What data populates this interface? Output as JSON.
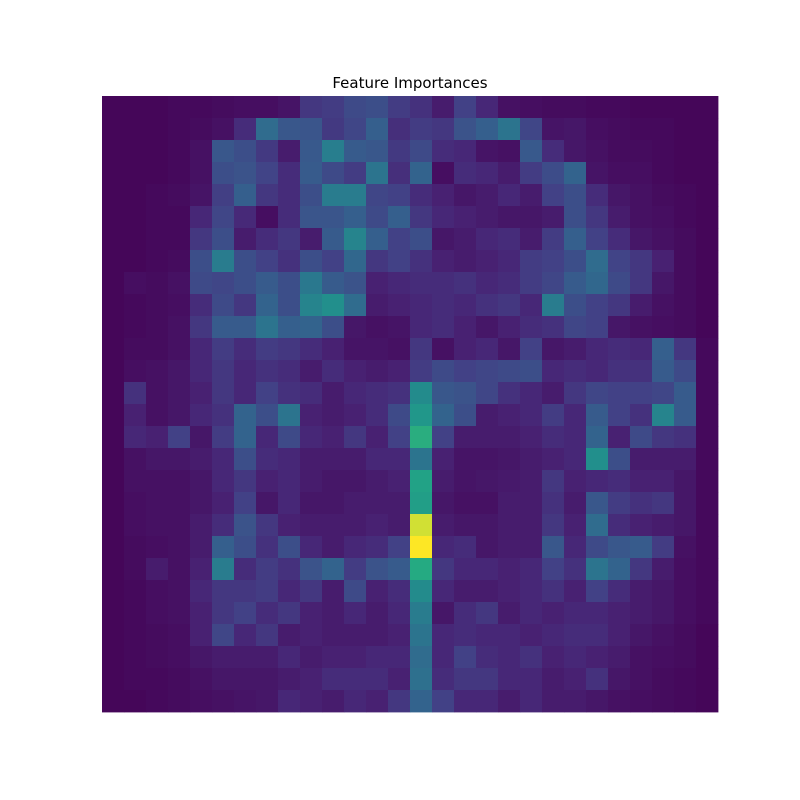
{
  "chart_data": {
    "type": "heatmap",
    "title": "Feature Importances",
    "xlabel": "",
    "ylabel": "",
    "axes_visible": false,
    "colormap": "viridis",
    "vmin": 0,
    "vmax": 1,
    "shape": [
      28,
      28
    ],
    "values": [
      [
        0.02,
        0.02,
        0.02,
        0.03,
        0.03,
        0.04,
        0.05,
        0.05,
        0.07,
        0.2,
        0.22,
        0.28,
        0.3,
        0.22,
        0.18,
        0.1,
        0.24,
        0.14,
        0.06,
        0.05,
        0.04,
        0.04,
        0.03,
        0.03,
        0.02,
        0.02,
        0.02,
        0.02
      ],
      [
        0.02,
        0.02,
        0.02,
        0.03,
        0.04,
        0.06,
        0.16,
        0.44,
        0.34,
        0.33,
        0.21,
        0.26,
        0.38,
        0.17,
        0.22,
        0.2,
        0.32,
        0.38,
        0.48,
        0.26,
        0.07,
        0.08,
        0.05,
        0.04,
        0.03,
        0.03,
        0.02,
        0.02
      ],
      [
        0.02,
        0.02,
        0.02,
        0.03,
        0.06,
        0.34,
        0.3,
        0.21,
        0.1,
        0.35,
        0.53,
        0.36,
        0.34,
        0.21,
        0.28,
        0.16,
        0.14,
        0.07,
        0.06,
        0.35,
        0.16,
        0.08,
        0.06,
        0.04,
        0.04,
        0.03,
        0.02,
        0.02
      ],
      [
        0.02,
        0.02,
        0.02,
        0.03,
        0.06,
        0.3,
        0.32,
        0.25,
        0.16,
        0.36,
        0.28,
        0.22,
        0.48,
        0.17,
        0.4,
        0.05,
        0.16,
        0.14,
        0.1,
        0.22,
        0.29,
        0.4,
        0.07,
        0.05,
        0.05,
        0.03,
        0.02,
        0.02
      ],
      [
        0.02,
        0.02,
        0.03,
        0.04,
        0.07,
        0.23,
        0.38,
        0.2,
        0.16,
        0.3,
        0.52,
        0.52,
        0.26,
        0.24,
        0.16,
        0.12,
        0.08,
        0.1,
        0.14,
        0.1,
        0.24,
        0.3,
        0.16,
        0.08,
        0.06,
        0.04,
        0.03,
        0.02
      ],
      [
        0.02,
        0.02,
        0.03,
        0.03,
        0.14,
        0.26,
        0.15,
        0.05,
        0.16,
        0.33,
        0.33,
        0.38,
        0.28,
        0.38,
        0.2,
        0.14,
        0.12,
        0.1,
        0.08,
        0.08,
        0.1,
        0.3,
        0.2,
        0.1,
        0.06,
        0.05,
        0.03,
        0.02
      ],
      [
        0.02,
        0.02,
        0.03,
        0.03,
        0.2,
        0.3,
        0.1,
        0.16,
        0.2,
        0.1,
        0.36,
        0.56,
        0.38,
        0.24,
        0.3,
        0.08,
        0.1,
        0.14,
        0.16,
        0.1,
        0.22,
        0.38,
        0.24,
        0.16,
        0.08,
        0.06,
        0.04,
        0.02
      ],
      [
        0.02,
        0.02,
        0.03,
        0.04,
        0.3,
        0.52,
        0.3,
        0.24,
        0.18,
        0.3,
        0.24,
        0.42,
        0.2,
        0.24,
        0.18,
        0.12,
        0.1,
        0.12,
        0.14,
        0.22,
        0.24,
        0.3,
        0.44,
        0.25,
        0.2,
        0.12,
        0.04,
        0.02
      ],
      [
        0.02,
        0.05,
        0.04,
        0.06,
        0.28,
        0.26,
        0.3,
        0.36,
        0.3,
        0.5,
        0.36,
        0.32,
        0.12,
        0.14,
        0.16,
        0.16,
        0.18,
        0.14,
        0.16,
        0.22,
        0.26,
        0.36,
        0.42,
        0.28,
        0.2,
        0.08,
        0.04,
        0.02
      ],
      [
        0.02,
        0.03,
        0.04,
        0.05,
        0.16,
        0.28,
        0.2,
        0.4,
        0.3,
        0.56,
        0.62,
        0.44,
        0.1,
        0.12,
        0.14,
        0.16,
        0.14,
        0.18,
        0.2,
        0.14,
        0.52,
        0.3,
        0.24,
        0.2,
        0.1,
        0.06,
        0.04,
        0.02
      ],
      [
        0.02,
        0.03,
        0.04,
        0.06,
        0.2,
        0.36,
        0.36,
        0.48,
        0.38,
        0.4,
        0.3,
        0.08,
        0.06,
        0.07,
        0.14,
        0.16,
        0.12,
        0.08,
        0.12,
        0.16,
        0.18,
        0.26,
        0.24,
        0.08,
        0.06,
        0.05,
        0.04,
        0.02
      ],
      [
        0.02,
        0.04,
        0.04,
        0.06,
        0.14,
        0.22,
        0.16,
        0.22,
        0.2,
        0.16,
        0.12,
        0.07,
        0.07,
        0.06,
        0.2,
        0.06,
        0.12,
        0.14,
        0.08,
        0.24,
        0.08,
        0.1,
        0.14,
        0.16,
        0.14,
        0.38,
        0.2,
        0.03
      ],
      [
        0.02,
        0.05,
        0.06,
        0.08,
        0.14,
        0.2,
        0.14,
        0.18,
        0.16,
        0.1,
        0.16,
        0.12,
        0.1,
        0.12,
        0.22,
        0.28,
        0.24,
        0.26,
        0.28,
        0.3,
        0.14,
        0.16,
        0.14,
        0.18,
        0.18,
        0.36,
        0.28,
        0.03
      ],
      [
        0.02,
        0.18,
        0.06,
        0.08,
        0.12,
        0.2,
        0.14,
        0.24,
        0.18,
        0.16,
        0.1,
        0.14,
        0.16,
        0.18,
        0.6,
        0.34,
        0.32,
        0.26,
        0.18,
        0.14,
        0.1,
        0.2,
        0.26,
        0.24,
        0.24,
        0.26,
        0.36,
        0.03
      ],
      [
        0.02,
        0.12,
        0.06,
        0.08,
        0.14,
        0.18,
        0.4,
        0.3,
        0.48,
        0.12,
        0.1,
        0.12,
        0.16,
        0.28,
        0.66,
        0.4,
        0.3,
        0.1,
        0.12,
        0.14,
        0.22,
        0.14,
        0.36,
        0.24,
        0.18,
        0.56,
        0.36,
        0.03
      ],
      [
        0.02,
        0.14,
        0.12,
        0.24,
        0.08,
        0.22,
        0.4,
        0.14,
        0.28,
        0.14,
        0.12,
        0.2,
        0.12,
        0.24,
        0.78,
        0.24,
        0.1,
        0.1,
        0.1,
        0.12,
        0.16,
        0.14,
        0.4,
        0.12,
        0.28,
        0.2,
        0.18,
        0.03
      ],
      [
        0.02,
        0.06,
        0.08,
        0.08,
        0.1,
        0.14,
        0.3,
        0.16,
        0.14,
        0.1,
        0.1,
        0.1,
        0.14,
        0.14,
        0.48,
        0.12,
        0.07,
        0.07,
        0.08,
        0.1,
        0.12,
        0.14,
        0.62,
        0.3,
        0.1,
        0.1,
        0.1,
        0.03
      ],
      [
        0.02,
        0.06,
        0.06,
        0.06,
        0.08,
        0.14,
        0.2,
        0.12,
        0.14,
        0.1,
        0.08,
        0.08,
        0.1,
        0.12,
        0.72,
        0.1,
        0.07,
        0.08,
        0.09,
        0.1,
        0.2,
        0.12,
        0.14,
        0.16,
        0.12,
        0.12,
        0.08,
        0.03
      ],
      [
        0.02,
        0.05,
        0.06,
        0.06,
        0.08,
        0.12,
        0.24,
        0.08,
        0.14,
        0.08,
        0.08,
        0.1,
        0.1,
        0.1,
        0.7,
        0.08,
        0.06,
        0.06,
        0.1,
        0.1,
        0.18,
        0.1,
        0.34,
        0.22,
        0.18,
        0.2,
        0.08,
        0.03
      ],
      [
        0.02,
        0.05,
        0.06,
        0.06,
        0.1,
        0.16,
        0.32,
        0.2,
        0.12,
        0.1,
        0.1,
        0.1,
        0.12,
        0.1,
        0.98,
        0.1,
        0.08,
        0.08,
        0.1,
        0.1,
        0.2,
        0.12,
        0.44,
        0.16,
        0.12,
        0.1,
        0.08,
        0.03
      ],
      [
        0.02,
        0.04,
        0.05,
        0.06,
        0.1,
        0.38,
        0.3,
        0.18,
        0.3,
        0.14,
        0.1,
        0.14,
        0.16,
        0.24,
        1.0,
        0.14,
        0.16,
        0.08,
        0.1,
        0.1,
        0.34,
        0.14,
        0.28,
        0.34,
        0.36,
        0.22,
        0.06,
        0.03
      ],
      [
        0.02,
        0.04,
        0.1,
        0.06,
        0.12,
        0.52,
        0.16,
        0.22,
        0.18,
        0.32,
        0.4,
        0.22,
        0.32,
        0.36,
        0.76,
        0.2,
        0.14,
        0.14,
        0.12,
        0.14,
        0.24,
        0.18,
        0.48,
        0.4,
        0.2,
        0.1,
        0.05,
        0.03
      ],
      [
        0.02,
        0.03,
        0.05,
        0.06,
        0.14,
        0.2,
        0.2,
        0.22,
        0.14,
        0.2,
        0.1,
        0.28,
        0.12,
        0.16,
        0.6,
        0.14,
        0.1,
        0.1,
        0.12,
        0.14,
        0.18,
        0.12,
        0.24,
        0.16,
        0.1,
        0.08,
        0.05,
        0.03
      ],
      [
        0.02,
        0.03,
        0.05,
        0.06,
        0.12,
        0.2,
        0.24,
        0.16,
        0.2,
        0.12,
        0.1,
        0.14,
        0.1,
        0.14,
        0.52,
        0.08,
        0.16,
        0.2,
        0.1,
        0.14,
        0.12,
        0.14,
        0.14,
        0.12,
        0.1,
        0.08,
        0.05,
        0.03
      ],
      [
        0.02,
        0.03,
        0.04,
        0.05,
        0.12,
        0.26,
        0.14,
        0.2,
        0.1,
        0.12,
        0.1,
        0.1,
        0.1,
        0.12,
        0.48,
        0.14,
        0.16,
        0.14,
        0.14,
        0.12,
        0.14,
        0.16,
        0.16,
        0.12,
        0.08,
        0.06,
        0.04,
        0.02
      ],
      [
        0.02,
        0.03,
        0.04,
        0.05,
        0.08,
        0.1,
        0.1,
        0.1,
        0.14,
        0.1,
        0.12,
        0.12,
        0.14,
        0.14,
        0.44,
        0.14,
        0.24,
        0.16,
        0.14,
        0.18,
        0.12,
        0.14,
        0.12,
        0.1,
        0.06,
        0.05,
        0.04,
        0.02
      ],
      [
        0.02,
        0.03,
        0.03,
        0.04,
        0.06,
        0.08,
        0.08,
        0.08,
        0.1,
        0.12,
        0.16,
        0.16,
        0.16,
        0.12,
        0.46,
        0.16,
        0.2,
        0.2,
        0.14,
        0.14,
        0.1,
        0.12,
        0.18,
        0.08,
        0.06,
        0.04,
        0.03,
        0.02
      ],
      [
        0.02,
        0.02,
        0.03,
        0.04,
        0.05,
        0.06,
        0.07,
        0.08,
        0.14,
        0.12,
        0.1,
        0.14,
        0.12,
        0.2,
        0.4,
        0.24,
        0.14,
        0.14,
        0.1,
        0.14,
        0.1,
        0.1,
        0.08,
        0.06,
        0.05,
        0.04,
        0.03,
        0.02
      ]
    ]
  }
}
